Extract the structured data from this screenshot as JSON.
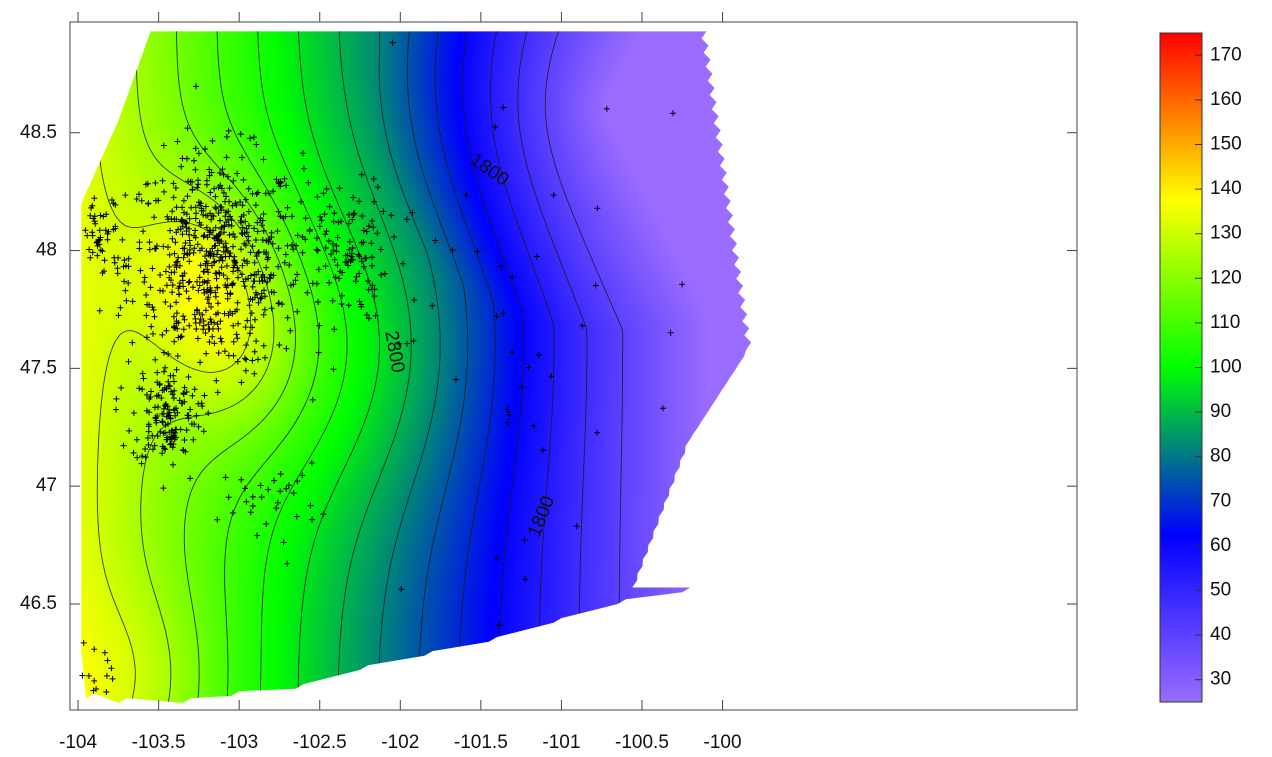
{
  "chart_data": {
    "type": "heatmap",
    "title": "",
    "xlabel": "",
    "ylabel": "",
    "xlim": [
      -104.05,
      -97.8
    ],
    "ylim": [
      46.05,
      48.97
    ],
    "x_ticks": [
      -104,
      -103.5,
      -103,
      -102.5,
      -102,
      -101.5,
      -101,
      -100.5,
      -100
    ],
    "x_tick_labels": [
      "-104",
      "-103.5",
      "-103",
      "-102.5",
      "-102",
      "-101.5",
      "-101",
      "-100.5",
      "-100"
    ],
    "y_ticks": [
      46.5,
      47,
      47.5,
      48,
      48.5
    ],
    "y_tick_labels": [
      "46.5",
      "47",
      "47.5",
      "48",
      "48.5"
    ],
    "grid": false,
    "colorbar": {
      "position": "right",
      "range": [
        25,
        175
      ],
      "ticks": [
        30,
        40,
        50,
        60,
        70,
        80,
        90,
        100,
        110,
        120,
        130,
        140,
        150,
        160,
        170
      ],
      "tick_labels": [
        "30",
        "40",
        "50",
        "60",
        "70",
        "80",
        "90",
        "100",
        "110",
        "120",
        "130",
        "140",
        "150",
        "160",
        "170"
      ],
      "colors": [
        "#9a6cff",
        "#0000ff",
        "#00ff00",
        "#ffff00",
        "#ff0000"
      ]
    },
    "contour_labels": [
      {
        "text": "1800",
        "x": -101.45,
        "y": 48.34,
        "angle": 35
      },
      {
        "text": "2800",
        "x": -102.04,
        "y": 47.57,
        "angle": 80
      },
      {
        "text": "1800",
        "x": -101.12,
        "y": 46.87,
        "angle": -68
      }
    ],
    "field": {
      "low_center": [
        -100.7,
        48.6
      ],
      "high_centers": [
        {
          "x": -103.2,
          "y": 47.95,
          "value": 135
        },
        {
          "x": -103.0,
          "y": 47.55,
          "value": 132
        },
        {
          "x": -103.6,
          "y": 46.2,
          "value": 125
        }
      ]
    },
    "data_extent": {
      "west": -103.98,
      "north": 48.93,
      "east_top": -100.1,
      "east_mid": -99.82,
      "south_west": 46.1,
      "south_east": 46.57
    }
  }
}
